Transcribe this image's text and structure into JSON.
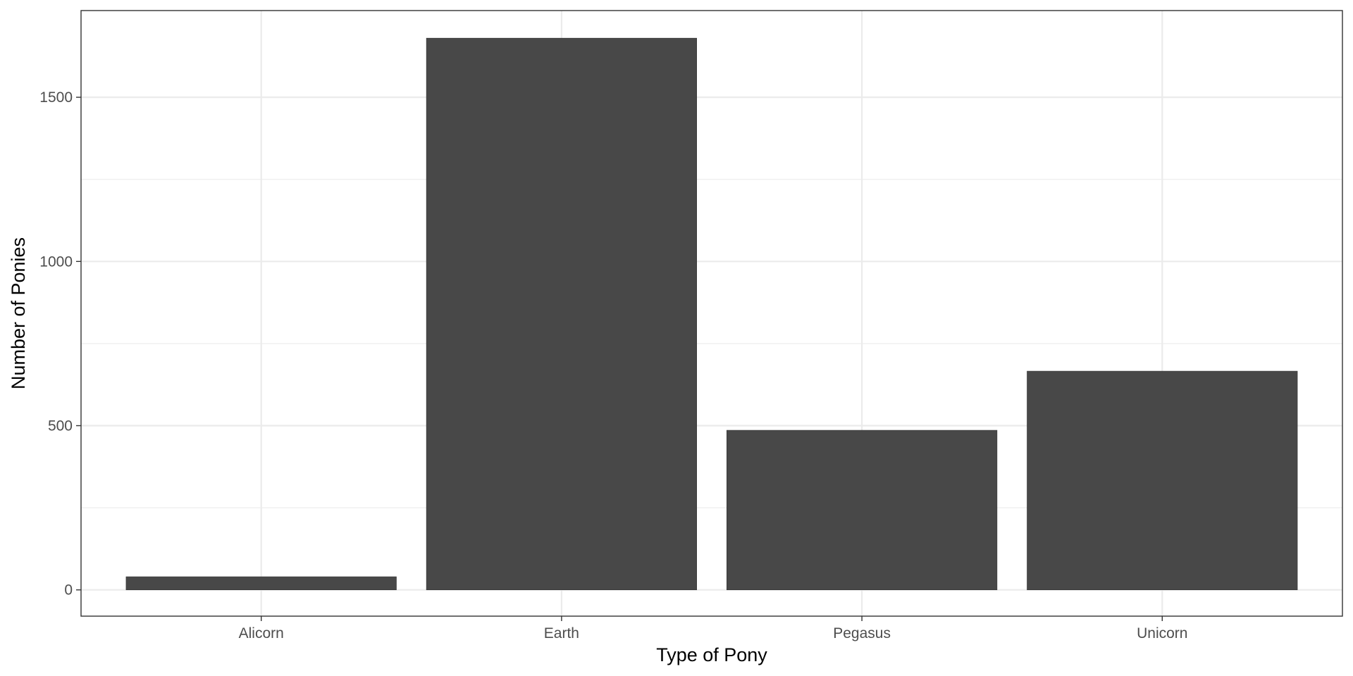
{
  "chart_data": {
    "type": "bar",
    "categories": [
      "Alicorn",
      "Earth",
      "Pegasus",
      "Unicorn"
    ],
    "values": [
      40,
      1680,
      486,
      666
    ],
    "title": "",
    "xlabel": "Type of Pony",
    "ylabel": "Number of Ponies",
    "ylim": [
      -80,
      1764
    ],
    "yticks": [
      0,
      500,
      1000,
      1500
    ],
    "ytick_labels": [
      "0",
      "500",
      "1000",
      "1500"
    ],
    "y_minor_ticks": [
      250,
      750,
      1250
    ],
    "grid": true,
    "legend": "none",
    "bar_color": "#484848",
    "background": "#ffffff",
    "grid_color": "#ebebeb"
  }
}
